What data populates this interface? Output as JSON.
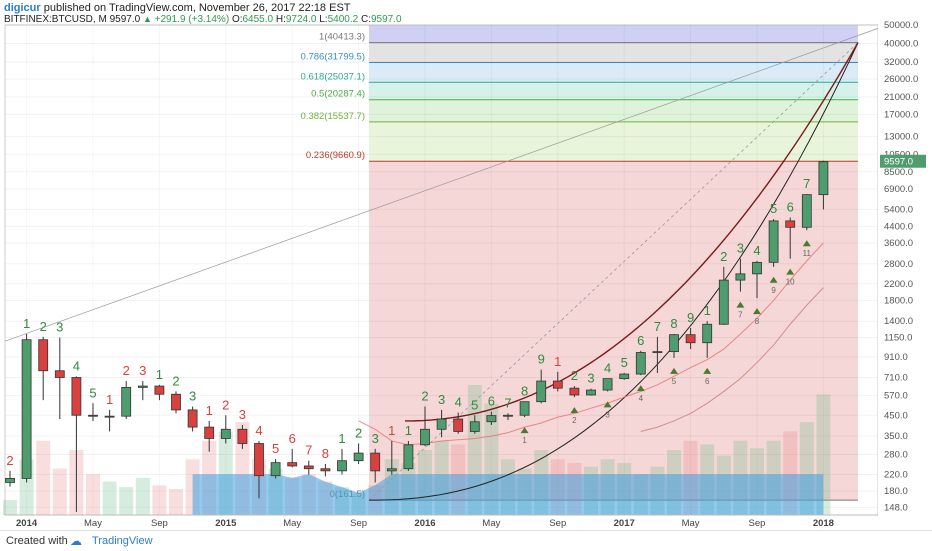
{
  "header": {
    "user": "digicur",
    "published": "published on TradingView.com, November 26, 2017 22:18 EST",
    "symbol": "BITFINEX:BTCUSD, M",
    "last": "9597.0",
    "change": "+291.9 (+3.14%)",
    "o_label": "O:",
    "o_value": "6455.0",
    "h_label": "H:",
    "h_value": "9724.0",
    "l_label": "L:",
    "l_value": "5400.2",
    "c_label": "C:",
    "c_value": "9597.0"
  },
  "footer": {
    "created": "Created with",
    "brand": "TradingView"
  },
  "colors": {
    "bull": "#4f9c6e",
    "bear": "#d8413f",
    "bull_count": "#2e8b3f",
    "bear_count": "#d8413f"
  },
  "chart_data": {
    "type": "candlestick",
    "scale": "log",
    "ylim": [
      135,
      50000
    ],
    "y_ticks": [
      50000,
      40000,
      32000,
      26000,
      21000,
      17000,
      13000,
      10500,
      8500,
      6900,
      5400,
      4400,
      3600,
      2800,
      2200,
      1800,
      1400,
      1150,
      910,
      710,
      570,
      450,
      350,
      280,
      220,
      180,
      148
    ],
    "x_labels": [
      "2014",
      "May",
      "Sep",
      "2015",
      "May",
      "Sep",
      "2016",
      "May",
      "Sep",
      "2017",
      "May",
      "Sep",
      "2018"
    ],
    "x_label_index": [
      1,
      5,
      9,
      13,
      17,
      21,
      25,
      29,
      33,
      37,
      41,
      45,
      49
    ],
    "last_price_tag": "9597.0",
    "candles": [
      {
        "o": 200,
        "h": 230,
        "l": 190,
        "c": 210
      },
      {
        "o": 210,
        "h": 1200,
        "l": 200,
        "c": 1120
      },
      {
        "o": 1120,
        "h": 1160,
        "l": 540,
        "c": 770
      },
      {
        "o": 770,
        "h": 1150,
        "l": 430,
        "c": 710
      },
      {
        "o": 710,
        "h": 720,
        "l": 140,
        "c": 450
      },
      {
        "o": 450,
        "h": 520,
        "l": 420,
        "c": 445
      },
      {
        "o": 445,
        "h": 480,
        "l": 370,
        "c": 445
      },
      {
        "o": 445,
        "h": 680,
        "l": 430,
        "c": 630
      },
      {
        "o": 630,
        "h": 680,
        "l": 540,
        "c": 640
      },
      {
        "o": 640,
        "h": 650,
        "l": 540,
        "c": 580
      },
      {
        "o": 580,
        "h": 600,
        "l": 460,
        "c": 480
      },
      {
        "o": 480,
        "h": 500,
        "l": 370,
        "c": 390
      },
      {
        "o": 390,
        "h": 420,
        "l": 290,
        "c": 340
      },
      {
        "o": 340,
        "h": 450,
        "l": 320,
        "c": 380
      },
      {
        "o": 380,
        "h": 400,
        "l": 300,
        "c": 320
      },
      {
        "o": 320,
        "h": 330,
        "l": 165,
        "c": 217
      },
      {
        "o": 217,
        "h": 265,
        "l": 210,
        "c": 254
      },
      {
        "o": 254,
        "h": 300,
        "l": 240,
        "c": 244
      },
      {
        "o": 244,
        "h": 260,
        "l": 220,
        "c": 236
      },
      {
        "o": 236,
        "h": 250,
        "l": 215,
        "c": 230
      },
      {
        "o": 230,
        "h": 300,
        "l": 220,
        "c": 260
      },
      {
        "o": 260,
        "h": 320,
        "l": 250,
        "c": 285
      },
      {
        "o": 285,
        "h": 300,
        "l": 200,
        "c": 230
      },
      {
        "o": 230,
        "h": 330,
        "l": 220,
        "c": 236
      },
      {
        "o": 236,
        "h": 330,
        "l": 230,
        "c": 315
      },
      {
        "o": 315,
        "h": 500,
        "l": 310,
        "c": 380
      },
      {
        "o": 380,
        "h": 480,
        "l": 345,
        "c": 430
      },
      {
        "o": 430,
        "h": 465,
        "l": 360,
        "c": 370
      },
      {
        "o": 370,
        "h": 450,
        "l": 360,
        "c": 416
      },
      {
        "o": 416,
        "h": 470,
        "l": 400,
        "c": 448
      },
      {
        "o": 448,
        "h": 460,
        "l": 425,
        "c": 450
      },
      {
        "o": 450,
        "h": 530,
        "l": 440,
        "c": 530
      },
      {
        "o": 530,
        "h": 780,
        "l": 520,
        "c": 680
      },
      {
        "o": 680,
        "h": 760,
        "l": 600,
        "c": 624
      },
      {
        "o": 624,
        "h": 640,
        "l": 560,
        "c": 575
      },
      {
        "o": 575,
        "h": 620,
        "l": 570,
        "c": 610
      },
      {
        "o": 610,
        "h": 700,
        "l": 600,
        "c": 700
      },
      {
        "o": 700,
        "h": 750,
        "l": 690,
        "c": 740
      },
      {
        "o": 740,
        "h": 980,
        "l": 730,
        "c": 960
      },
      {
        "o": 960,
        "h": 1160,
        "l": 750,
        "c": 970
      },
      {
        "o": 970,
        "h": 1200,
        "l": 900,
        "c": 1190
      },
      {
        "o": 1190,
        "h": 1290,
        "l": 1000,
        "c": 1080
      },
      {
        "o": 1080,
        "h": 1400,
        "l": 900,
        "c": 1350
      },
      {
        "o": 1350,
        "h": 2700,
        "l": 1340,
        "c": 2300
      },
      {
        "o": 2300,
        "h": 2980,
        "l": 2000,
        "c": 2480
      },
      {
        "o": 2480,
        "h": 2900,
        "l": 1850,
        "c": 2850
      },
      {
        "o": 2850,
        "h": 4800,
        "l": 2700,
        "c": 4700
      },
      {
        "o": 4700,
        "h": 4900,
        "l": 2980,
        "c": 4350
      },
      {
        "o": 4350,
        "h": 6500,
        "l": 4200,
        "c": 6450
      },
      {
        "o": 6450,
        "h": 9724,
        "l": 5400,
        "c": 9597
      }
    ],
    "candle_counts": [
      {
        "i": 0,
        "label": "2",
        "dir": "bear"
      },
      {
        "i": 1,
        "label": "1",
        "dir": "bull"
      },
      {
        "i": 2,
        "label": "2",
        "dir": "bull"
      },
      {
        "i": 3,
        "label": "3",
        "dir": "bull"
      },
      {
        "i": 4,
        "label": "4",
        "dir": "bull"
      },
      {
        "i": 5,
        "label": "5",
        "dir": "bull"
      },
      {
        "i": 6,
        "label": "1",
        "dir": "bear"
      },
      {
        "i": 7,
        "label": "2",
        "dir": "bear"
      },
      {
        "i": 8,
        "label": "3",
        "dir": "bear"
      },
      {
        "i": 9,
        "label": "1",
        "dir": "bull"
      },
      {
        "i": 10,
        "label": "2",
        "dir": "bull"
      },
      {
        "i": 11,
        "label": "3",
        "dir": "bull"
      },
      {
        "i": 12,
        "label": "1",
        "dir": "bear"
      },
      {
        "i": 13,
        "label": "2",
        "dir": "bear"
      },
      {
        "i": 14,
        "label": "3",
        "dir": "bear"
      },
      {
        "i": 15,
        "label": "4",
        "dir": "bear"
      },
      {
        "i": 16,
        "label": "5",
        "dir": "bear"
      },
      {
        "i": 17,
        "label": "6",
        "dir": "bear"
      },
      {
        "i": 18,
        "label": "7",
        "dir": "bear"
      },
      {
        "i": 19,
        "label": "8",
        "dir": "bear"
      },
      {
        "i": 20,
        "label": "1",
        "dir": "bull"
      },
      {
        "i": 21,
        "label": "2",
        "dir": "bull"
      },
      {
        "i": 22,
        "label": "3",
        "dir": "bull"
      },
      {
        "i": 23,
        "label": "1",
        "dir": "bear"
      },
      {
        "i": 24,
        "label": "1",
        "dir": "bull"
      },
      {
        "i": 25,
        "label": "2",
        "dir": "bull"
      },
      {
        "i": 26,
        "label": "3",
        "dir": "bull"
      },
      {
        "i": 27,
        "label": "4",
        "dir": "bull"
      },
      {
        "i": 28,
        "label": "5",
        "dir": "bull"
      },
      {
        "i": 29,
        "label": "6",
        "dir": "bull"
      },
      {
        "i": 30,
        "label": "7",
        "dir": "bull"
      },
      {
        "i": 31,
        "label": "8",
        "dir": "bull"
      },
      {
        "i": 32,
        "label": "9",
        "dir": "bull"
      },
      {
        "i": 33,
        "label": "1",
        "dir": "bear"
      },
      {
        "i": 34,
        "label": "2",
        "dir": "bull"
      },
      {
        "i": 35,
        "label": "3",
        "dir": "bull"
      },
      {
        "i": 36,
        "label": "4",
        "dir": "bull"
      },
      {
        "i": 37,
        "label": "5",
        "dir": "bull"
      },
      {
        "i": 38,
        "label": "6",
        "dir": "bull"
      },
      {
        "i": 39,
        "label": "7",
        "dir": "bull"
      },
      {
        "i": 40,
        "label": "8",
        "dir": "bull"
      },
      {
        "i": 41,
        "label": "9",
        "dir": "bull"
      },
      {
        "i": 42,
        "label": "1",
        "dir": "bull"
      },
      {
        "i": 43,
        "label": "2",
        "dir": "bull"
      },
      {
        "i": 44,
        "label": "3",
        "dir": "bull"
      },
      {
        "i": 45,
        "label": "4",
        "dir": "bull"
      },
      {
        "i": 46,
        "label": "5",
        "dir": "bull"
      },
      {
        "i": 47,
        "label": "6",
        "dir": "bull"
      },
      {
        "i": 48,
        "label": "7",
        "dir": "bull"
      }
    ],
    "fib_levels": [
      {
        "label": "1(40413.3)",
        "value": 40413.3,
        "color": "#787878",
        "fill": "#dedede"
      },
      {
        "label": "0.786(31799.5)",
        "value": 31799.5,
        "color": "#3a8ec9",
        "fill": "#d3e7f6"
      },
      {
        "label": "0.618(25037.1)",
        "value": 25037.1,
        "color": "#2bab92",
        "fill": "#cfeee6"
      },
      {
        "label": "0.5(20287.4)",
        "value": 20287.4,
        "color": "#44b341",
        "fill": "#d9f1d3"
      },
      {
        "label": "0.382(15537.7)",
        "value": 15537.7,
        "color": "#6fb33a",
        "fill": "#e5f3d4"
      },
      {
        "label": "0.236(9660.9)",
        "value": 9660.9,
        "color": "#c0392b",
        "fill": "#f4d0d0"
      },
      {
        "label": "0(161.5)",
        "value": 161.5,
        "color": "#787878",
        "fill": "#f4d0d0"
      }
    ],
    "triangle_labels": [
      "1",
      "2",
      "3",
      "4",
      "5",
      "6",
      "7",
      "8",
      "9",
      "10",
      "11"
    ],
    "ma_fast": [
      null,
      null,
      null,
      null,
      null,
      null,
      null,
      null,
      null,
      null,
      null,
      null,
      null,
      null,
      null,
      null,
      null,
      null,
      null,
      null,
      null,
      420,
      380,
      330,
      315,
      320,
      330,
      335,
      340,
      350,
      365,
      390,
      410,
      440,
      460,
      490,
      520,
      560,
      600,
      650,
      720,
      800,
      880,
      1000,
      1200,
      1450,
      1800,
      2300,
      2900,
      3600
    ],
    "ma_slow": [
      null,
      null,
      null,
      null,
      null,
      null,
      null,
      null,
      null,
      null,
      null,
      null,
      null,
      null,
      null,
      null,
      null,
      null,
      null,
      null,
      null,
      null,
      null,
      null,
      null,
      null,
      null,
      null,
      null,
      null,
      null,
      null,
      null,
      null,
      null,
      null,
      null,
      null,
      370,
      390,
      420,
      460,
      520,
      600,
      700,
      850,
      1050,
      1350,
      1700,
      2100
    ],
    "volume": [
      8,
      30,
      40,
      25,
      35,
      22,
      18,
      15,
      20,
      16,
      14,
      30,
      40,
      45,
      50,
      30,
      25,
      20,
      22,
      18,
      15,
      12,
      16,
      30,
      28,
      35,
      40,
      38,
      70,
      60,
      30,
      25,
      35,
      30,
      28,
      26,
      30,
      28,
      22,
      26,
      35,
      40,
      38,
      32,
      40,
      36,
      40,
      45,
      50,
      65
    ]
  }
}
